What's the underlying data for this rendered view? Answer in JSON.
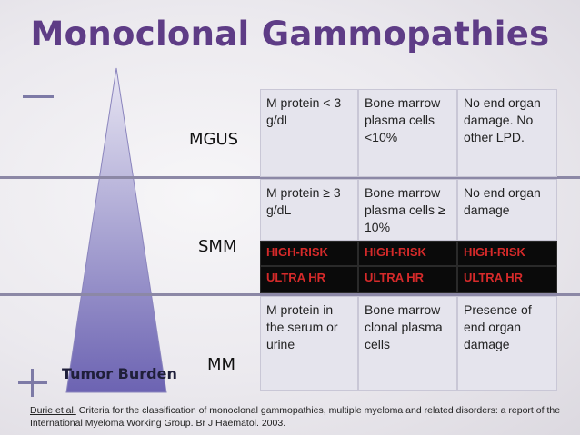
{
  "title": "Monoclonal Gammopathies",
  "stages": {
    "mgus": "MGUS",
    "smm": "SMM",
    "mm": "MM"
  },
  "tumor_burden_label": "Tumor Burden",
  "table": {
    "mgus": [
      "M protein < 3 g/dL",
      "Bone marrow plasma cells <10%",
      "No end organ damage. No other LPD."
    ],
    "smm": [
      "M protein ≥ 3 g/dL",
      "Bone marrow plasma cells ≥ 10%",
      "No end organ damage"
    ],
    "high_risk": [
      "HIGH-RISK",
      "HIGH-RISK",
      "HIGH-RISK"
    ],
    "ultra_hr": [
      "ULTRA HR",
      "ULTRA HR",
      "ULTRA HR"
    ],
    "mm": [
      "M protein in the serum or urine",
      "Bone marrow clonal plasma cells",
      "Presence of end organ damage"
    ]
  },
  "citation": {
    "link_text": "Durie et al.",
    "text": " Criteria for the classification of monoclonal gammopathies, multiple myeloma and related disorders: a report of the International Myeloma Working Group. Br J Haematol. 2003."
  },
  "colors": {
    "title": "#5e3c86",
    "triangle_top": "#e2dff0",
    "triangle_bottom": "#6b62b0",
    "risk_text": "#d62a2a",
    "risk_bg": "#0a0a0a"
  }
}
